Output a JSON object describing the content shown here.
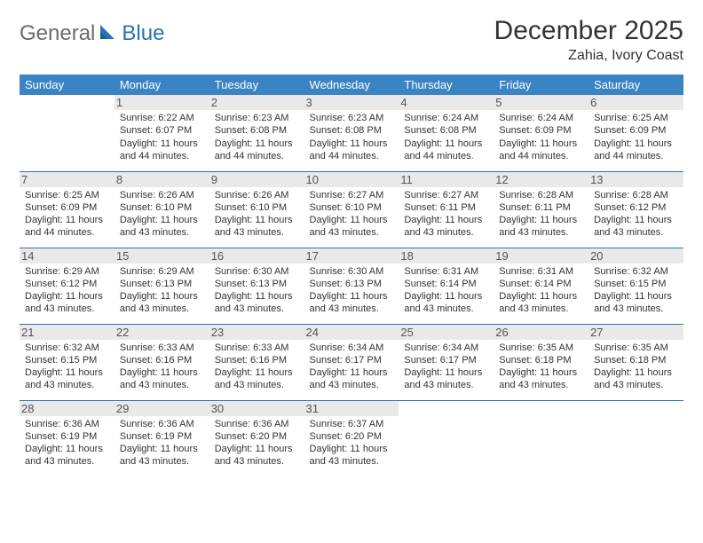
{
  "logo": {
    "general": "General",
    "blue": "Blue"
  },
  "title": "December 2025",
  "location": "Zahia, Ivory Coast",
  "colors": {
    "header_bg": "#3b84c4",
    "header_text": "#ffffff",
    "rule": "#2a72b5",
    "daynum_bg": "#e9e9e9",
    "logo_gray": "#6b6b6b",
    "logo_blue": "#2a72b5",
    "text": "#333333",
    "background": "#ffffff"
  },
  "typography": {
    "title_fontsize": 30,
    "location_fontsize": 16,
    "dayheader_fontsize": 13,
    "daynum_fontsize": 13,
    "cell_fontsize": 11
  },
  "day_headers": [
    "Sunday",
    "Monday",
    "Tuesday",
    "Wednesday",
    "Thursday",
    "Friday",
    "Saturday"
  ],
  "weeks": [
    [
      {
        "n": "",
        "sunrise": "",
        "sunset": "",
        "daylight": ""
      },
      {
        "n": "1",
        "sunrise": "Sunrise: 6:22 AM",
        "sunset": "Sunset: 6:07 PM",
        "daylight": "Daylight: 11 hours and 44 minutes."
      },
      {
        "n": "2",
        "sunrise": "Sunrise: 6:23 AM",
        "sunset": "Sunset: 6:08 PM",
        "daylight": "Daylight: 11 hours and 44 minutes."
      },
      {
        "n": "3",
        "sunrise": "Sunrise: 6:23 AM",
        "sunset": "Sunset: 6:08 PM",
        "daylight": "Daylight: 11 hours and 44 minutes."
      },
      {
        "n": "4",
        "sunrise": "Sunrise: 6:24 AM",
        "sunset": "Sunset: 6:08 PM",
        "daylight": "Daylight: 11 hours and 44 minutes."
      },
      {
        "n": "5",
        "sunrise": "Sunrise: 6:24 AM",
        "sunset": "Sunset: 6:09 PM",
        "daylight": "Daylight: 11 hours and 44 minutes."
      },
      {
        "n": "6",
        "sunrise": "Sunrise: 6:25 AM",
        "sunset": "Sunset: 6:09 PM",
        "daylight": "Daylight: 11 hours and 44 minutes."
      }
    ],
    [
      {
        "n": "7",
        "sunrise": "Sunrise: 6:25 AM",
        "sunset": "Sunset: 6:09 PM",
        "daylight": "Daylight: 11 hours and 44 minutes."
      },
      {
        "n": "8",
        "sunrise": "Sunrise: 6:26 AM",
        "sunset": "Sunset: 6:10 PM",
        "daylight": "Daylight: 11 hours and 43 minutes."
      },
      {
        "n": "9",
        "sunrise": "Sunrise: 6:26 AM",
        "sunset": "Sunset: 6:10 PM",
        "daylight": "Daylight: 11 hours and 43 minutes."
      },
      {
        "n": "10",
        "sunrise": "Sunrise: 6:27 AM",
        "sunset": "Sunset: 6:10 PM",
        "daylight": "Daylight: 11 hours and 43 minutes."
      },
      {
        "n": "11",
        "sunrise": "Sunrise: 6:27 AM",
        "sunset": "Sunset: 6:11 PM",
        "daylight": "Daylight: 11 hours and 43 minutes."
      },
      {
        "n": "12",
        "sunrise": "Sunrise: 6:28 AM",
        "sunset": "Sunset: 6:11 PM",
        "daylight": "Daylight: 11 hours and 43 minutes."
      },
      {
        "n": "13",
        "sunrise": "Sunrise: 6:28 AM",
        "sunset": "Sunset: 6:12 PM",
        "daylight": "Daylight: 11 hours and 43 minutes."
      }
    ],
    [
      {
        "n": "14",
        "sunrise": "Sunrise: 6:29 AM",
        "sunset": "Sunset: 6:12 PM",
        "daylight": "Daylight: 11 hours and 43 minutes."
      },
      {
        "n": "15",
        "sunrise": "Sunrise: 6:29 AM",
        "sunset": "Sunset: 6:13 PM",
        "daylight": "Daylight: 11 hours and 43 minutes."
      },
      {
        "n": "16",
        "sunrise": "Sunrise: 6:30 AM",
        "sunset": "Sunset: 6:13 PM",
        "daylight": "Daylight: 11 hours and 43 minutes."
      },
      {
        "n": "17",
        "sunrise": "Sunrise: 6:30 AM",
        "sunset": "Sunset: 6:13 PM",
        "daylight": "Daylight: 11 hours and 43 minutes."
      },
      {
        "n": "18",
        "sunrise": "Sunrise: 6:31 AM",
        "sunset": "Sunset: 6:14 PM",
        "daylight": "Daylight: 11 hours and 43 minutes."
      },
      {
        "n": "19",
        "sunrise": "Sunrise: 6:31 AM",
        "sunset": "Sunset: 6:14 PM",
        "daylight": "Daylight: 11 hours and 43 minutes."
      },
      {
        "n": "20",
        "sunrise": "Sunrise: 6:32 AM",
        "sunset": "Sunset: 6:15 PM",
        "daylight": "Daylight: 11 hours and 43 minutes."
      }
    ],
    [
      {
        "n": "21",
        "sunrise": "Sunrise: 6:32 AM",
        "sunset": "Sunset: 6:15 PM",
        "daylight": "Daylight: 11 hours and 43 minutes."
      },
      {
        "n": "22",
        "sunrise": "Sunrise: 6:33 AM",
        "sunset": "Sunset: 6:16 PM",
        "daylight": "Daylight: 11 hours and 43 minutes."
      },
      {
        "n": "23",
        "sunrise": "Sunrise: 6:33 AM",
        "sunset": "Sunset: 6:16 PM",
        "daylight": "Daylight: 11 hours and 43 minutes."
      },
      {
        "n": "24",
        "sunrise": "Sunrise: 6:34 AM",
        "sunset": "Sunset: 6:17 PM",
        "daylight": "Daylight: 11 hours and 43 minutes."
      },
      {
        "n": "25",
        "sunrise": "Sunrise: 6:34 AM",
        "sunset": "Sunset: 6:17 PM",
        "daylight": "Daylight: 11 hours and 43 minutes."
      },
      {
        "n": "26",
        "sunrise": "Sunrise: 6:35 AM",
        "sunset": "Sunset: 6:18 PM",
        "daylight": "Daylight: 11 hours and 43 minutes."
      },
      {
        "n": "27",
        "sunrise": "Sunrise: 6:35 AM",
        "sunset": "Sunset: 6:18 PM",
        "daylight": "Daylight: 11 hours and 43 minutes."
      }
    ],
    [
      {
        "n": "28",
        "sunrise": "Sunrise: 6:36 AM",
        "sunset": "Sunset: 6:19 PM",
        "daylight": "Daylight: 11 hours and 43 minutes."
      },
      {
        "n": "29",
        "sunrise": "Sunrise: 6:36 AM",
        "sunset": "Sunset: 6:19 PM",
        "daylight": "Daylight: 11 hours and 43 minutes."
      },
      {
        "n": "30",
        "sunrise": "Sunrise: 6:36 AM",
        "sunset": "Sunset: 6:20 PM",
        "daylight": "Daylight: 11 hours and 43 minutes."
      },
      {
        "n": "31",
        "sunrise": "Sunrise: 6:37 AM",
        "sunset": "Sunset: 6:20 PM",
        "daylight": "Daylight: 11 hours and 43 minutes."
      },
      {
        "n": "",
        "sunrise": "",
        "sunset": "",
        "daylight": ""
      },
      {
        "n": "",
        "sunrise": "",
        "sunset": "",
        "daylight": ""
      },
      {
        "n": "",
        "sunrise": "",
        "sunset": "",
        "daylight": ""
      }
    ]
  ]
}
